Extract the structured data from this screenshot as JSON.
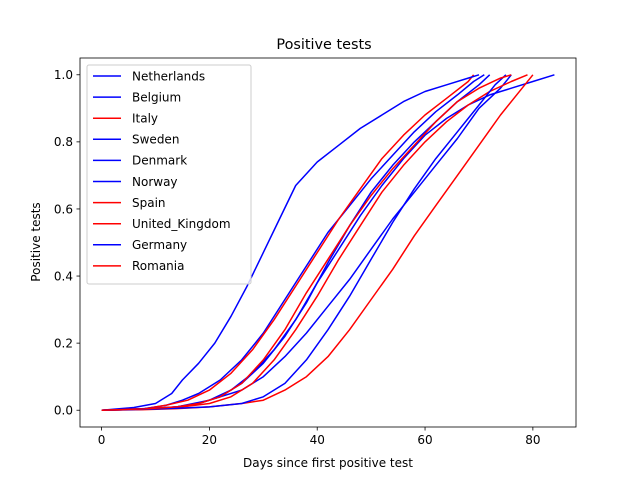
{
  "chart_data": {
    "type": "line",
    "title": "Positive tests",
    "xlabel": "Days since first positive test",
    "ylabel": "Positive tests",
    "xlim": [
      -4,
      88
    ],
    "ylim": [
      -0.05,
      1.05
    ],
    "xticks": [
      0,
      20,
      40,
      60,
      80
    ],
    "yticks": [
      0.0,
      0.2,
      0.4,
      0.6,
      0.8,
      1.0
    ],
    "xtick_labels": [
      "0",
      "20",
      "40",
      "60",
      "80"
    ],
    "ytick_labels": [
      "0.0",
      "0.2",
      "0.4",
      "0.6",
      "0.8",
      "1.0"
    ],
    "grid": false,
    "legend_position": "upper-left",
    "colors": {
      "blue": "#0000ff",
      "red": "#ff0000"
    },
    "series": [
      {
        "name": "Netherlands",
        "color": "#0000ff",
        "points": [
          [
            0,
            0
          ],
          [
            8,
            0.005
          ],
          [
            12,
            0.015
          ],
          [
            15,
            0.03
          ],
          [
            18,
            0.05
          ],
          [
            22,
            0.09
          ],
          [
            26,
            0.15
          ],
          [
            30,
            0.23
          ],
          [
            34,
            0.33
          ],
          [
            38,
            0.43
          ],
          [
            42,
            0.53
          ],
          [
            46,
            0.61
          ],
          [
            50,
            0.69
          ],
          [
            54,
            0.76
          ],
          [
            58,
            0.83
          ],
          [
            62,
            0.89
          ],
          [
            66,
            0.94
          ],
          [
            69,
            0.98
          ],
          [
            71,
            1.0
          ]
        ]
      },
      {
        "name": "Belgium",
        "color": "#0000ff",
        "points": [
          [
            0,
            0
          ],
          [
            8,
            0.003
          ],
          [
            14,
            0.01
          ],
          [
            18,
            0.02
          ],
          [
            22,
            0.04
          ],
          [
            26,
            0.06
          ],
          [
            30,
            0.1
          ],
          [
            34,
            0.16
          ],
          [
            38,
            0.23
          ],
          [
            42,
            0.31
          ],
          [
            46,
            0.39
          ],
          [
            50,
            0.48
          ],
          [
            54,
            0.57
          ],
          [
            58,
            0.65
          ],
          [
            62,
            0.73
          ],
          [
            66,
            0.81
          ],
          [
            70,
            0.9
          ],
          [
            74,
            0.96
          ],
          [
            76,
            1.0
          ]
        ]
      },
      {
        "name": "Italy",
        "color": "#ff0000",
        "points": [
          [
            0,
            0
          ],
          [
            8,
            0.005
          ],
          [
            12,
            0.015
          ],
          [
            16,
            0.03
          ],
          [
            20,
            0.06
          ],
          [
            24,
            0.11
          ],
          [
            28,
            0.18
          ],
          [
            32,
            0.27
          ],
          [
            36,
            0.37
          ],
          [
            40,
            0.47
          ],
          [
            44,
            0.57
          ],
          [
            48,
            0.66
          ],
          [
            52,
            0.75
          ],
          [
            56,
            0.82
          ],
          [
            60,
            0.88
          ],
          [
            64,
            0.93
          ],
          [
            68,
            0.98
          ],
          [
            69,
            1.0
          ]
        ]
      },
      {
        "name": "Sweden",
        "color": "#0000ff",
        "points": [
          [
            0,
            0
          ],
          [
            8,
            0.005
          ],
          [
            14,
            0.01
          ],
          [
            18,
            0.02
          ],
          [
            22,
            0.04
          ],
          [
            26,
            0.08
          ],
          [
            30,
            0.14
          ],
          [
            34,
            0.22
          ],
          [
            38,
            0.32
          ],
          [
            42,
            0.44
          ],
          [
            46,
            0.55
          ],
          [
            50,
            0.65
          ],
          [
            54,
            0.73
          ],
          [
            58,
            0.8
          ],
          [
            62,
            0.86
          ],
          [
            66,
            0.92
          ],
          [
            70,
            0.97
          ],
          [
            72,
            1.0
          ]
        ]
      },
      {
        "name": "Denmark",
        "color": "#0000ff",
        "points": [
          [
            0,
            0
          ],
          [
            8,
            0.003
          ],
          [
            14,
            0.01
          ],
          [
            20,
            0.03
          ],
          [
            24,
            0.06
          ],
          [
            28,
            0.11
          ],
          [
            32,
            0.18
          ],
          [
            36,
            0.27
          ],
          [
            40,
            0.38
          ],
          [
            44,
            0.48
          ],
          [
            48,
            0.58
          ],
          [
            52,
            0.67
          ],
          [
            56,
            0.75
          ],
          [
            60,
            0.82
          ],
          [
            64,
            0.87
          ],
          [
            68,
            0.91
          ],
          [
            72,
            0.94
          ],
          [
            76,
            0.96
          ],
          [
            80,
            0.98
          ],
          [
            84,
            1.0
          ]
        ]
      },
      {
        "name": "Norway",
        "color": "#0000ff",
        "points": [
          [
            0,
            0
          ],
          [
            6,
            0.008
          ],
          [
            10,
            0.02
          ],
          [
            13,
            0.05
          ],
          [
            15,
            0.09
          ],
          [
            18,
            0.14
          ],
          [
            21,
            0.2
          ],
          [
            24,
            0.28
          ],
          [
            27,
            0.37
          ],
          [
            30,
            0.47
          ],
          [
            33,
            0.57
          ],
          [
            36,
            0.67
          ],
          [
            40,
            0.74
          ],
          [
            44,
            0.79
          ],
          [
            48,
            0.84
          ],
          [
            52,
            0.88
          ],
          [
            56,
            0.92
          ],
          [
            60,
            0.95
          ],
          [
            64,
            0.97
          ],
          [
            68,
            0.99
          ],
          [
            70,
            1.0
          ]
        ]
      },
      {
        "name": "Spain",
        "color": "#ff0000",
        "points": [
          [
            0,
            0
          ],
          [
            8,
            0.003
          ],
          [
            14,
            0.008
          ],
          [
            20,
            0.02
          ],
          [
            24,
            0.04
          ],
          [
            28,
            0.08
          ],
          [
            32,
            0.15
          ],
          [
            36,
            0.24
          ],
          [
            40,
            0.34
          ],
          [
            44,
            0.45
          ],
          [
            48,
            0.55
          ],
          [
            52,
            0.65
          ],
          [
            56,
            0.73
          ],
          [
            60,
            0.8
          ],
          [
            64,
            0.86
          ],
          [
            68,
            0.91
          ],
          [
            72,
            0.95
          ],
          [
            76,
            0.98
          ],
          [
            79,
            1.0
          ]
        ]
      },
      {
        "name": "United_Kingdom",
        "color": "#ff0000",
        "points": [
          [
            0,
            0
          ],
          [
            8,
            0.002
          ],
          [
            14,
            0.005
          ],
          [
            20,
            0.01
          ],
          [
            26,
            0.02
          ],
          [
            30,
            0.03
          ],
          [
            34,
            0.06
          ],
          [
            38,
            0.1
          ],
          [
            42,
            0.16
          ],
          [
            46,
            0.24
          ],
          [
            50,
            0.33
          ],
          [
            54,
            0.42
          ],
          [
            58,
            0.52
          ],
          [
            62,
            0.61
          ],
          [
            66,
            0.7
          ],
          [
            70,
            0.79
          ],
          [
            74,
            0.88
          ],
          [
            78,
            0.96
          ],
          [
            80,
            1.0
          ]
        ]
      },
      {
        "name": "Germany",
        "color": "#0000ff",
        "points": [
          [
            0,
            0
          ],
          [
            8,
            0.003
          ],
          [
            14,
            0.006
          ],
          [
            20,
            0.01
          ],
          [
            26,
            0.02
          ],
          [
            30,
            0.04
          ],
          [
            34,
            0.08
          ],
          [
            38,
            0.15
          ],
          [
            42,
            0.24
          ],
          [
            46,
            0.34
          ],
          [
            50,
            0.45
          ],
          [
            54,
            0.56
          ],
          [
            58,
            0.66
          ],
          [
            62,
            0.75
          ],
          [
            66,
            0.83
          ],
          [
            70,
            0.91
          ],
          [
            73,
            0.97
          ],
          [
            75,
            1.0
          ]
        ]
      },
      {
        "name": "Romania",
        "color": "#ff0000",
        "points": [
          [
            0,
            0
          ],
          [
            8,
            0.004
          ],
          [
            14,
            0.01
          ],
          [
            18,
            0.02
          ],
          [
            22,
            0.04
          ],
          [
            26,
            0.08
          ],
          [
            30,
            0.15
          ],
          [
            34,
            0.24
          ],
          [
            38,
            0.35
          ],
          [
            42,
            0.45
          ],
          [
            46,
            0.55
          ],
          [
            50,
            0.64
          ],
          [
            54,
            0.72
          ],
          [
            58,
            0.79
          ],
          [
            62,
            0.86
          ],
          [
            66,
            0.92
          ],
          [
            70,
            0.96
          ],
          [
            74,
            0.99
          ],
          [
            76,
            1.0
          ]
        ]
      }
    ]
  }
}
